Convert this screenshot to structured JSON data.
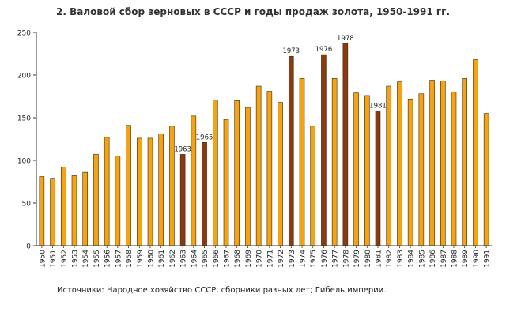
{
  "chart_data": {
    "type": "bar",
    "title": "2. Валовой сбор зерновых в СССР и годы продаж золота, 1950-1991 гг.",
    "source": "Источники: Народное хозяйство СССР, сборники разных лет; Гибель империи.",
    "xlabel": "",
    "ylabel": "",
    "ylim": [
      0,
      250
    ],
    "yticks": [
      0,
      50,
      100,
      150,
      200,
      250
    ],
    "grid": false,
    "legend": "none",
    "colors": {
      "normal": "#F5A312",
      "gold_sale": "#8B3A10",
      "bar_stroke": "#3A2A10",
      "axis": "#333333"
    },
    "categories": [
      "1950",
      "1951",
      "1952",
      "1953",
      "1954",
      "1955",
      "1956",
      "1957",
      "1958",
      "1959",
      "1960",
      "1961",
      "1962",
      "1963",
      "1964",
      "1965",
      "1966",
      "1967",
      "1968",
      "1969",
      "1970",
      "1971",
      "1972",
      "1973",
      "1974",
      "1975",
      "1976",
      "1977",
      "1978",
      "1979",
      "1980",
      "1981",
      "1982",
      "1983",
      "1984",
      "1985",
      "1986",
      "1987",
      "1988",
      "1989",
      "1990",
      "1991"
    ],
    "values": [
      81,
      79,
      92,
      82,
      86,
      107,
      127,
      105,
      141,
      126,
      126,
      131,
      140,
      107,
      152,
      121,
      171,
      148,
      170,
      162,
      187,
      181,
      168,
      222,
      196,
      140,
      224,
      196,
      237,
      179,
      176,
      158,
      187,
      192,
      172,
      178,
      194,
      193,
      180,
      196,
      218,
      155
    ],
    "highlighted": [
      "1963",
      "1965",
      "1973",
      "1976",
      "1978",
      "1981"
    ],
    "annotations": [
      {
        "category": "1963",
        "text": "1963"
      },
      {
        "category": "1965",
        "text": "1965"
      },
      {
        "category": "1973",
        "text": "1973"
      },
      {
        "category": "1976",
        "text": "1976"
      },
      {
        "category": "1978",
        "text": "1978"
      },
      {
        "category": "1981",
        "text": "1981"
      }
    ]
  }
}
